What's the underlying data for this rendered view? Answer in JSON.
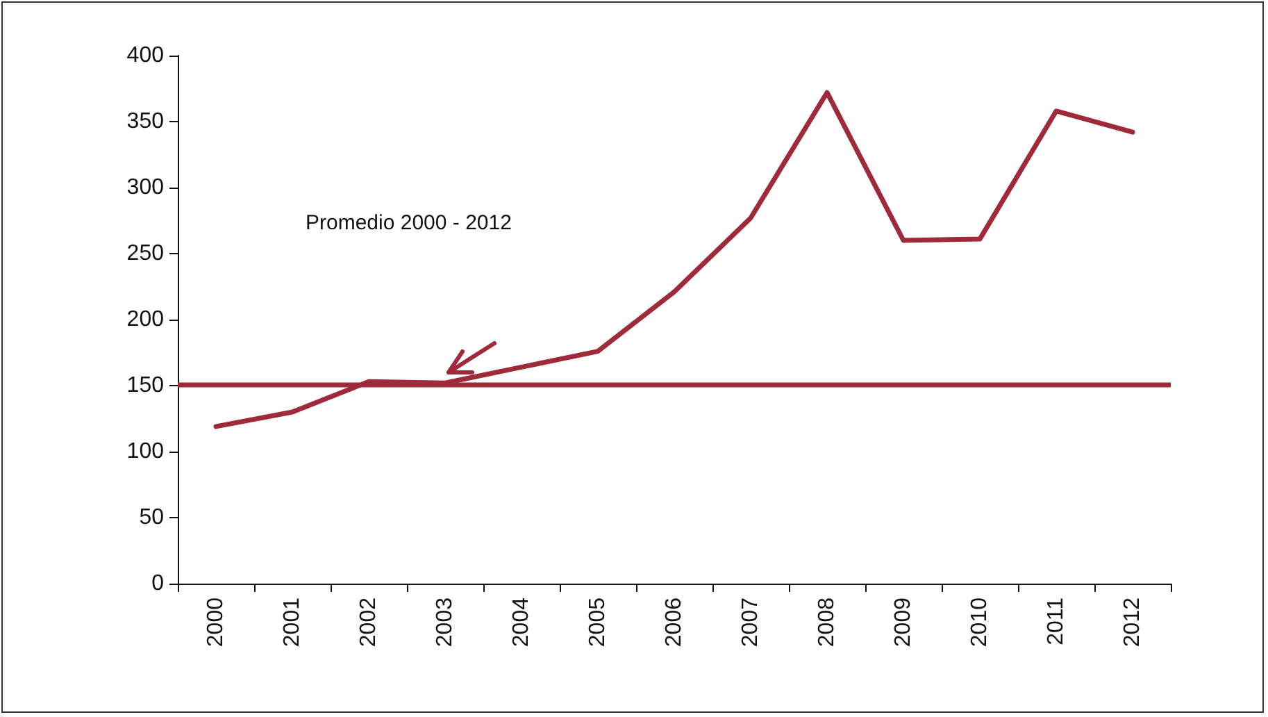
{
  "chart_data": {
    "type": "line",
    "categories": [
      "2000",
      "2001",
      "2002",
      "2003",
      "2004",
      "2005",
      "2006",
      "2007",
      "2008",
      "2009",
      "2010",
      "2011",
      "2012"
    ],
    "series": [
      {
        "color": "#9e2a3a",
        "values": [
          119,
          130,
          153,
          152,
          164,
          176,
          221,
          277,
          372,
          260,
          261,
          358,
          342
        ]
      }
    ],
    "ylim": [
      0,
      400
    ],
    "yticks": [
      0,
      50,
      100,
      150,
      200,
      250,
      300,
      350,
      400
    ],
    "grid": false,
    "marker": "none",
    "line_style": "solid",
    "annotations": [
      "Promedio 2000 - 2012"
    ],
    "ref_lines": [
      {
        "axis": "y",
        "value": 151,
        "color": "#9e2a3a"
      }
    ]
  }
}
